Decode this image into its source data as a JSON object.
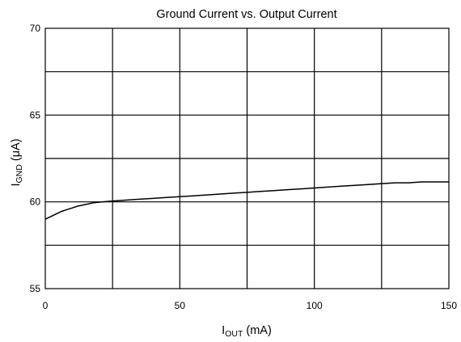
{
  "chart_data": {
    "type": "line",
    "title": "Ground Current vs. Output Current",
    "xlabel": {
      "main": "I",
      "sub": "OUT",
      "unit": " (mA)"
    },
    "ylabel": {
      "main": "I",
      "sub": "GND",
      "unit": " (μA)"
    },
    "xlim": [
      0,
      150
    ],
    "ylim": [
      55,
      70
    ],
    "x_ticks": [
      "0",
      "50",
      "100",
      "150"
    ],
    "y_ticks": [
      "55",
      "60",
      "65",
      "70"
    ],
    "grid": true,
    "series": [
      {
        "x": [
          0,
          2,
          4,
          6,
          8,
          10,
          12,
          15,
          18,
          21,
          25,
          30,
          35,
          40,
          45,
          50,
          55,
          60,
          65,
          70,
          75,
          80,
          85,
          90,
          95,
          100,
          105,
          110,
          115,
          120,
          125,
          130,
          135,
          140,
          145,
          150
        ],
        "y": [
          59.0,
          59.15,
          59.3,
          59.45,
          59.55,
          59.65,
          59.75,
          59.85,
          59.95,
          60.0,
          60.05,
          60.1,
          60.15,
          60.2,
          60.25,
          60.3,
          60.35,
          60.4,
          60.45,
          60.5,
          60.55,
          60.6,
          60.65,
          60.7,
          60.75,
          60.8,
          60.85,
          60.9,
          60.95,
          61.0,
          61.05,
          61.1,
          61.1,
          61.15,
          61.15,
          61.15
        ]
      }
    ],
    "colors": {
      "line": "#000000",
      "grid": "#000000",
      "frame": "#000000"
    }
  }
}
